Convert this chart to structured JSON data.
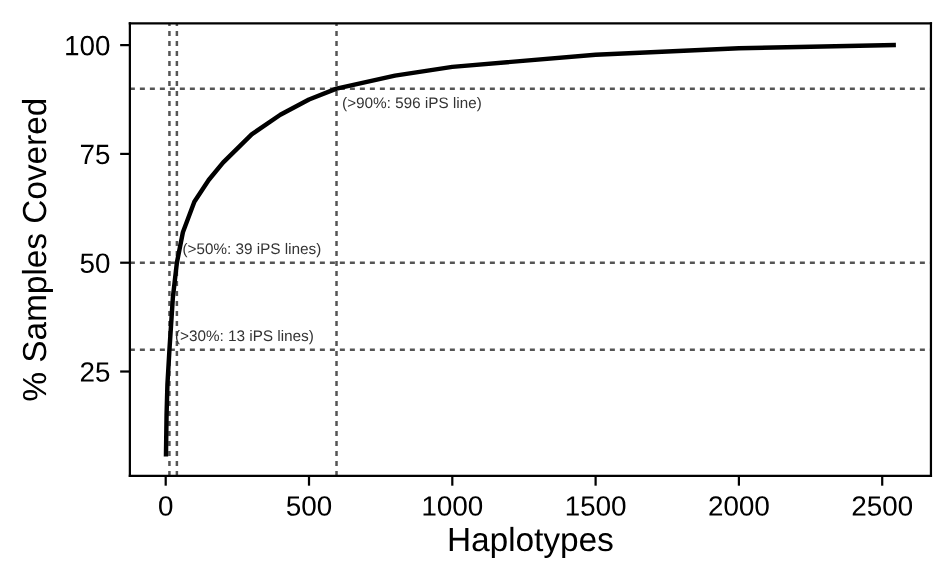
{
  "chart_data": {
    "type": "line",
    "xlabel": "Haplotypes",
    "ylabel": "% Samples Covered",
    "x": [
      1,
      3,
      6,
      13,
      25,
      39,
      60,
      100,
      150,
      200,
      300,
      400,
      500,
      596,
      800,
      1000,
      1500,
      2000,
      2540
    ],
    "series": [
      {
        "color": "#000000",
        "values": [
          6,
          15,
          22,
          30,
          42,
          50,
          57,
          64,
          69,
          73,
          79.5,
          84,
          87.5,
          90,
          93,
          95,
          97.8,
          99.3,
          100
        ]
      }
    ],
    "xlim": [
      -125,
      2670
    ],
    "ylim": [
      1,
      105
    ],
    "xticks": [
      0,
      500,
      1000,
      1500,
      2000,
      2500
    ],
    "yticks": [
      25,
      50,
      75,
      100
    ],
    "grid": false,
    "marker": "none",
    "line_style": "solid",
    "ref_lines": [
      {
        "axis": "x",
        "value": 13,
        "color": "#555555",
        "line_style": "dotted"
      },
      {
        "axis": "x",
        "value": 39,
        "color": "#555555",
        "line_style": "dotted"
      },
      {
        "axis": "x",
        "value": 596,
        "color": "#555555",
        "line_style": "dotted"
      },
      {
        "axis": "y",
        "value": 30,
        "color": "#555555",
        "line_style": "dotted"
      },
      {
        "axis": "y",
        "value": 50,
        "color": "#555555",
        "line_style": "dotted"
      },
      {
        "axis": "y",
        "value": 90,
        "color": "#555555",
        "line_style": "dotted"
      }
    ],
    "annotations": [
      {
        "text": "(>30%: 13 iPS lines)",
        "x": 13,
        "y": 30
      },
      {
        "text": "(>50%: 39 iPS lines)",
        "x": 39,
        "y": 50
      },
      {
        "text": "(>90%: 596 iPS line)",
        "x": 596,
        "y": 90
      }
    ]
  }
}
